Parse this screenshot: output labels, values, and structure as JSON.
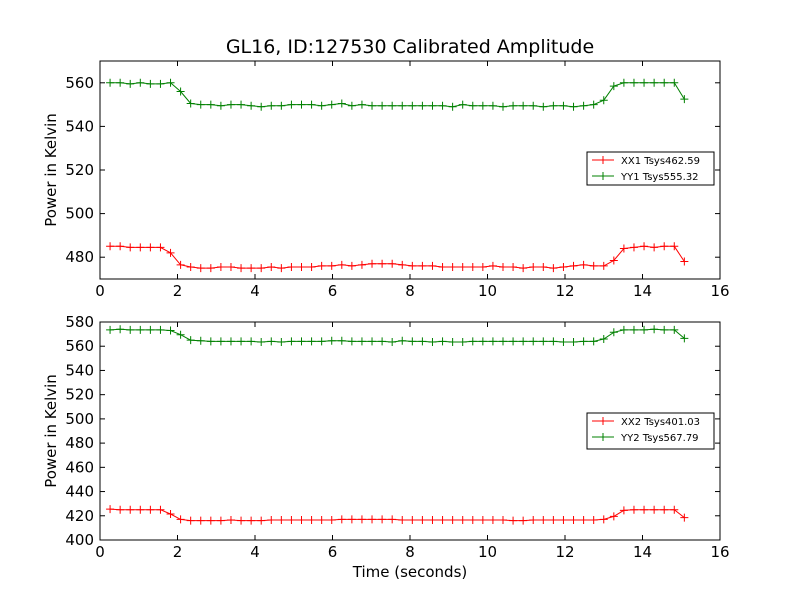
{
  "figure": {
    "title": "GL16, ID:127530 Calibrated Amplitude"
  },
  "chart_data": [
    {
      "type": "line",
      "title": "GL16, ID:127530 Calibrated Amplitude",
      "xlabel": "",
      "ylabel": "Power in Kelvin",
      "xlim": [
        0,
        16
      ],
      "ylim": [
        470,
        570
      ],
      "xticks": [
        0,
        2,
        4,
        6,
        8,
        10,
        12,
        14,
        16
      ],
      "yticks": [
        480,
        500,
        520,
        540,
        560
      ],
      "grid": false,
      "legend_position": "right",
      "x": [
        0.26,
        0.52,
        0.78,
        1.04,
        1.3,
        1.56,
        1.82,
        2.08,
        2.34,
        2.6,
        2.86,
        3.12,
        3.38,
        3.64,
        3.9,
        4.16,
        4.42,
        4.68,
        4.94,
        5.2,
        5.46,
        5.72,
        5.98,
        6.24,
        6.5,
        6.76,
        7.02,
        7.28,
        7.54,
        7.8,
        8.06,
        8.32,
        8.58,
        8.84,
        9.1,
        9.36,
        9.62,
        9.88,
        10.14,
        10.4,
        10.66,
        10.92,
        11.18,
        11.44,
        11.7,
        11.96,
        12.22,
        12.48,
        12.74,
        13.0,
        13.26,
        13.52,
        13.78,
        14.04,
        14.3,
        14.56,
        14.82,
        15.08
      ],
      "series": [
        {
          "name": "XX1 Tsys462.59",
          "color": "#ff0000",
          "values": [
            485,
            485,
            484.5,
            484.5,
            484.5,
            484.5,
            482,
            476.5,
            475.5,
            475,
            475,
            475.5,
            475.5,
            475,
            475,
            475,
            475.5,
            475,
            475.5,
            475.5,
            475.5,
            476,
            476,
            476.5,
            476,
            476.5,
            477,
            477,
            477,
            476.5,
            476,
            476,
            476,
            475.5,
            475.5,
            475.5,
            475.5,
            475.5,
            476,
            475.5,
            475.5,
            475,
            475.5,
            475.5,
            475,
            475.5,
            476,
            476.5,
            476,
            476,
            478.5,
            484,
            484.5,
            485,
            484.5,
            485,
            485,
            478
          ]
        },
        {
          "name": "YY1 Tsys555.32",
          "color": "#008000",
          "values": [
            560,
            560,
            559.5,
            560,
            559.5,
            559.5,
            560,
            556,
            550.5,
            550,
            550,
            549.5,
            550,
            550,
            549.5,
            549,
            549.5,
            549.5,
            550,
            550,
            550,
            549.5,
            550,
            550.5,
            549.5,
            550,
            549.5,
            549.5,
            549.5,
            549.5,
            549.5,
            549.5,
            549.5,
            549.5,
            549,
            550,
            549.5,
            549.5,
            549.5,
            549,
            549.5,
            549.5,
            549.5,
            549,
            549.5,
            549.5,
            549,
            549.5,
            550,
            552,
            558.5,
            560,
            560,
            560,
            560,
            560,
            560,
            552.5
          ]
        }
      ]
    },
    {
      "type": "line",
      "title": "",
      "xlabel": "Time (seconds)",
      "ylabel": "Power in Kelvin",
      "xlim": [
        0,
        16
      ],
      "ylim": [
        400,
        580
      ],
      "xticks": [
        0,
        2,
        4,
        6,
        8,
        10,
        12,
        14,
        16
      ],
      "yticks": [
        400,
        420,
        440,
        460,
        480,
        500,
        520,
        540,
        560,
        580
      ],
      "grid": false,
      "legend_position": "right",
      "x": [
        0.26,
        0.52,
        0.78,
        1.04,
        1.3,
        1.56,
        1.82,
        2.08,
        2.34,
        2.6,
        2.86,
        3.12,
        3.38,
        3.64,
        3.9,
        4.16,
        4.42,
        4.68,
        4.94,
        5.2,
        5.46,
        5.72,
        5.98,
        6.24,
        6.5,
        6.76,
        7.02,
        7.28,
        7.54,
        7.8,
        8.06,
        8.32,
        8.58,
        8.84,
        9.1,
        9.36,
        9.62,
        9.88,
        10.14,
        10.4,
        10.66,
        10.92,
        11.18,
        11.44,
        11.7,
        11.96,
        12.22,
        12.48,
        12.74,
        13.0,
        13.26,
        13.52,
        13.78,
        14.04,
        14.3,
        14.56,
        14.82,
        15.08
      ],
      "series": [
        {
          "name": "XX2 Tsys401.03",
          "color": "#ff0000",
          "values": [
            425.5,
            425,
            425,
            425,
            425,
            425,
            421.5,
            417,
            416,
            416,
            416,
            416,
            416.5,
            416,
            416,
            416,
            416.5,
            416.5,
            416.5,
            416.5,
            416.5,
            416.5,
            416.5,
            417,
            417,
            417,
            417,
            417,
            417,
            416.5,
            416.5,
            416.5,
            416.5,
            416.5,
            416.5,
            416.5,
            416.5,
            416.5,
            416.5,
            416.5,
            416,
            416,
            416.5,
            416.5,
            416.5,
            416.5,
            416.5,
            416.5,
            416.5,
            417,
            419.5,
            424.5,
            425,
            425,
            425,
            425,
            425,
            418.5
          ]
        },
        {
          "name": "YY2 Tsys567.79",
          "color": "#008000",
          "values": [
            573.5,
            574,
            573.5,
            573.5,
            573.5,
            573.5,
            573,
            569.5,
            565,
            564.5,
            564,
            564,
            564,
            564,
            564,
            563.5,
            564,
            563.5,
            564,
            564,
            564,
            564,
            564.5,
            564.5,
            564,
            564,
            564,
            564,
            563.5,
            564.5,
            564,
            564,
            563.5,
            564,
            563.5,
            563.5,
            564,
            564,
            564,
            564,
            564,
            564,
            564,
            564,
            564,
            563.5,
            563.5,
            564,
            564,
            566,
            571.5,
            573.5,
            573.5,
            573.5,
            574,
            573.5,
            573.5,
            566.5
          ]
        }
      ]
    }
  ]
}
